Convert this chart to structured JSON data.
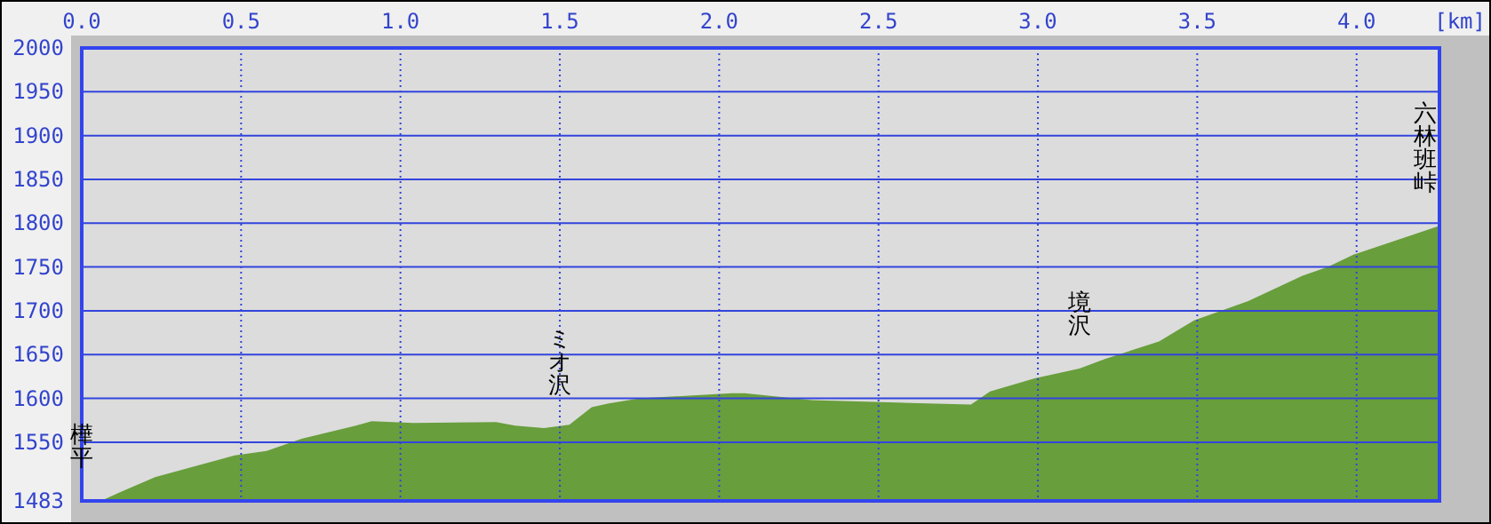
{
  "chart_data": {
    "type": "area",
    "xlabel": "[km]",
    "xlim": [
      0,
      4.26
    ],
    "ylim": [
      1483,
      2000
    ],
    "xticks": [
      {
        "value": 0,
        "label": "0.0"
      },
      0.5,
      {
        "value": 1,
        "label": "1.0"
      },
      1.5,
      {
        "value": 2,
        "label": "2.0"
      },
      2.5,
      {
        "value": 3,
        "label": "3.0"
      },
      3.5,
      {
        "value": 4,
        "label": "4.0"
      }
    ],
    "yticks": [
      1483,
      1550,
      1600,
      1650,
      1700,
      1750,
      1800,
      1850,
      1900,
      1950,
      2000
    ],
    "grid": true,
    "x": [
      0,
      0.06,
      0.12,
      0.23,
      0.36,
      0.48,
      0.58,
      0.69,
      0.86,
      0.91,
      1.04,
      1.3,
      1.36,
      1.45,
      1.53,
      1.6,
      1.65,
      1.75,
      2.04,
      2.08,
      2.29,
      2.68,
      2.79,
      2.85,
      2.99,
      3.13,
      3.21,
      3.38,
      3.49,
      3.66,
      3.83,
      3.91,
      3.99,
      4.26
    ],
    "series": [
      {
        "color": "#689e3c",
        "values": [
          1483,
          1483,
          1493,
          1510,
          1523,
          1535,
          1540,
          1554,
          1569,
          1574,
          1572,
          1573,
          1569,
          1566,
          1570,
          1590,
          1594,
          1600,
          1606,
          1606,
          1598,
          1594,
          1593,
          1608,
          1623,
          1634,
          1645,
          1665,
          1689,
          1711,
          1740,
          1750,
          1764,
          1797
        ]
      }
    ],
    "annotations": [
      {
        "text": "樺平",
        "x": 0,
        "y": 1483
      },
      {
        "text": "ミオ沢",
        "x": 1.5,
        "y": 1566
      },
      {
        "text": "境沢",
        "x": 3.13,
        "y": 1634
      },
      {
        "text": "六林班峠",
        "x": 4.26,
        "y": 1797
      }
    ]
  }
}
